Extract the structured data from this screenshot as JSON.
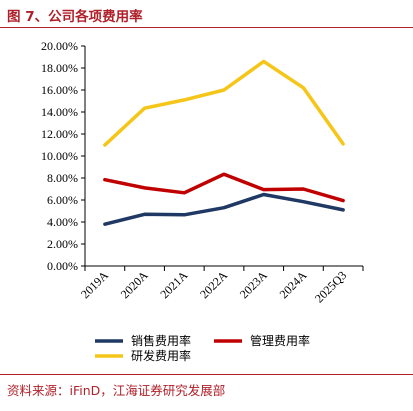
{
  "figure": {
    "title": "图 7、公司各项费用率",
    "source": "资料来源：iFinD，江海证券研究发展部",
    "accent_color": "#b0202a"
  },
  "chart_data": {
    "type": "line",
    "categories": [
      "2019A",
      "2020A",
      "2021A",
      "2022A",
      "2023A",
      "2024A",
      "2025Q3"
    ],
    "ylim": [
      0,
      20
    ],
    "yticks": [
      "0.00%",
      "2.00%",
      "4.00%",
      "6.00%",
      "8.00%",
      "10.00%",
      "12.00%",
      "14.00%",
      "16.00%",
      "18.00%",
      "20.00%"
    ],
    "series": [
      {
        "name": "销售费用率",
        "color": "#1f3864",
        "values": [
          3.8,
          4.7,
          4.65,
          5.3,
          6.5,
          5.85,
          5.1
        ]
      },
      {
        "name": "管理费用率",
        "color": "#c00000",
        "values": [
          7.85,
          7.1,
          6.65,
          8.35,
          6.95,
          7.0,
          5.95
        ]
      },
      {
        "name": "研发费用率",
        "color": "#f5c518",
        "values": [
          11.0,
          14.35,
          15.1,
          16.0,
          18.6,
          16.2,
          11.1
        ]
      }
    ],
    "legend_position": "bottom",
    "grid": false
  }
}
